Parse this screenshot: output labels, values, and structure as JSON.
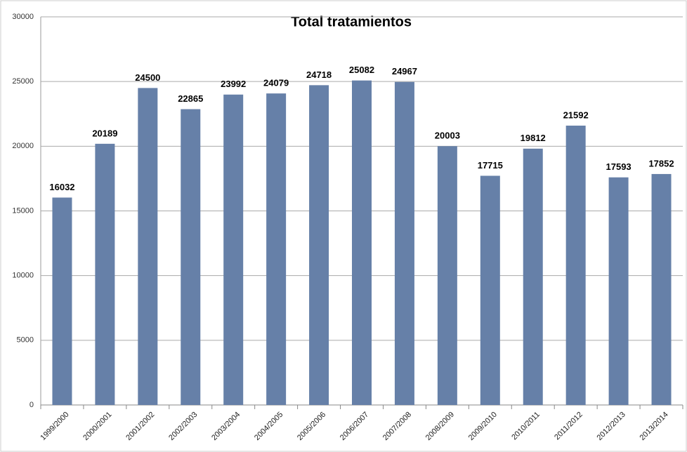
{
  "chart_data": {
    "type": "bar",
    "title": "Total tratamientos",
    "categories": [
      "1999/2000",
      "2000/2001",
      "2001/2002",
      "2002/2003",
      "2003/2004",
      "2004/2005",
      "2005/2006",
      "2006/2007",
      "2007/2008",
      "2008/2009",
      "2009/2010",
      "2010/2011",
      "2011/2012",
      "2012/2013",
      "2013/2014"
    ],
    "values": [
      16032,
      20189,
      24500,
      22865,
      23992,
      24079,
      24718,
      25082,
      24967,
      20003,
      17715,
      19812,
      21592,
      17593,
      17852
    ],
    "color": "#6680a8",
    "ylim": [
      0,
      30000
    ],
    "yticks": [
      0,
      5000,
      10000,
      15000,
      20000,
      25000,
      30000
    ],
    "grid": true
  }
}
